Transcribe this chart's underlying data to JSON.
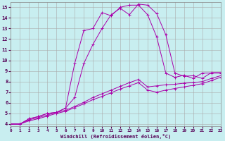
{
  "xlabel": "Windchill (Refroidissement éolien,°C)",
  "bg_color": "#c8eef0",
  "line_color": "#aa00aa",
  "grid_color": "#aaaaaa",
  "xlim": [
    0,
    23
  ],
  "ylim": [
    3.8,
    15.5
  ],
  "xticks": [
    0,
    1,
    2,
    3,
    4,
    5,
    6,
    7,
    8,
    9,
    10,
    11,
    12,
    13,
    14,
    15,
    16,
    17,
    18,
    19,
    20,
    21,
    22,
    23
  ],
  "yticks": [
    4,
    5,
    6,
    7,
    8,
    9,
    10,
    11,
    12,
    13,
    14,
    15
  ],
  "curve1": [
    4.0,
    4.0,
    4.5,
    4.7,
    5.0,
    5.1,
    5.5,
    9.7,
    12.8,
    13.0,
    14.5,
    14.2,
    15.0,
    15.2,
    15.2,
    14.3,
    12.2,
    8.8,
    8.4,
    8.6,
    8.3,
    8.8,
    8.8,
    8.8
  ],
  "curve2": [
    4.0,
    4.0,
    4.5,
    4.7,
    5.0,
    5.1,
    5.5,
    6.5,
    9.7,
    11.5,
    13.0,
    14.3,
    14.9,
    14.3,
    15.3,
    15.2,
    14.4,
    12.4,
    8.8,
    8.5,
    8.55,
    8.3,
    8.85,
    8.85
  ],
  "curve3": [
    4.0,
    4.0,
    4.4,
    4.6,
    4.85,
    5.1,
    5.3,
    5.65,
    6.05,
    6.5,
    6.85,
    7.2,
    7.55,
    7.9,
    8.2,
    7.5,
    7.6,
    7.7,
    7.75,
    7.85,
    7.9,
    8.0,
    8.3,
    8.55
  ],
  "curve4": [
    4.0,
    4.0,
    4.3,
    4.5,
    4.75,
    5.0,
    5.2,
    5.55,
    5.9,
    6.3,
    6.6,
    6.95,
    7.3,
    7.6,
    7.9,
    7.2,
    7.0,
    7.2,
    7.35,
    7.5,
    7.65,
    7.8,
    8.1,
    8.4
  ]
}
